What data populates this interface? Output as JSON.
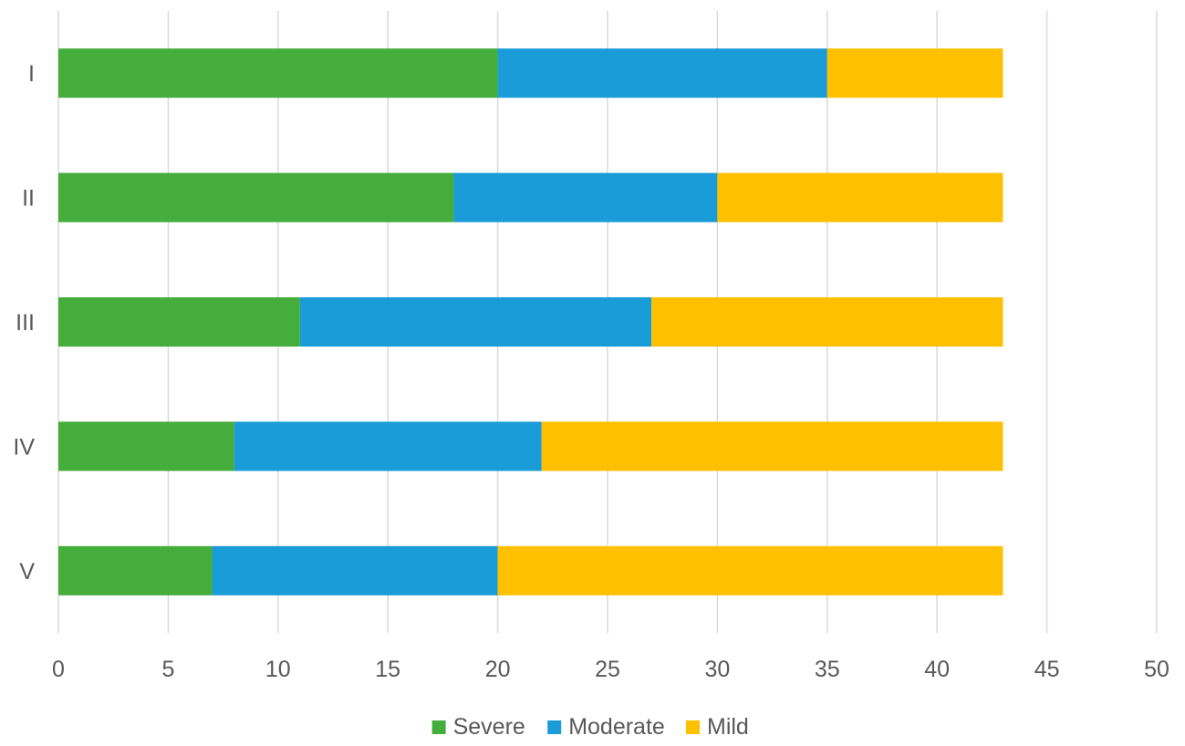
{
  "chart_data": {
    "type": "bar",
    "orientation": "horizontal",
    "stacked": true,
    "categories": [
      "I",
      "II",
      "III",
      "IV",
      "V"
    ],
    "series": [
      {
        "name": "Severe",
        "color": "#45AD3C",
        "values": [
          20,
          18,
          11,
          8,
          7
        ]
      },
      {
        "name": "Moderate",
        "color": "#1A9CD8",
        "values": [
          15,
          12,
          16,
          14,
          13
        ]
      },
      {
        "name": "Mild",
        "color": "#FFC000",
        "values": [
          8,
          13,
          16,
          21,
          23
        ]
      }
    ],
    "xlim": [
      0,
      50
    ],
    "xticks": [
      "0",
      "5",
      "10",
      "15",
      "20",
      "25",
      "30",
      "35",
      "40",
      "45",
      "50"
    ],
    "grid": true,
    "legend_position": "bottom",
    "title": "",
    "xlabel": "",
    "ylabel": ""
  }
}
